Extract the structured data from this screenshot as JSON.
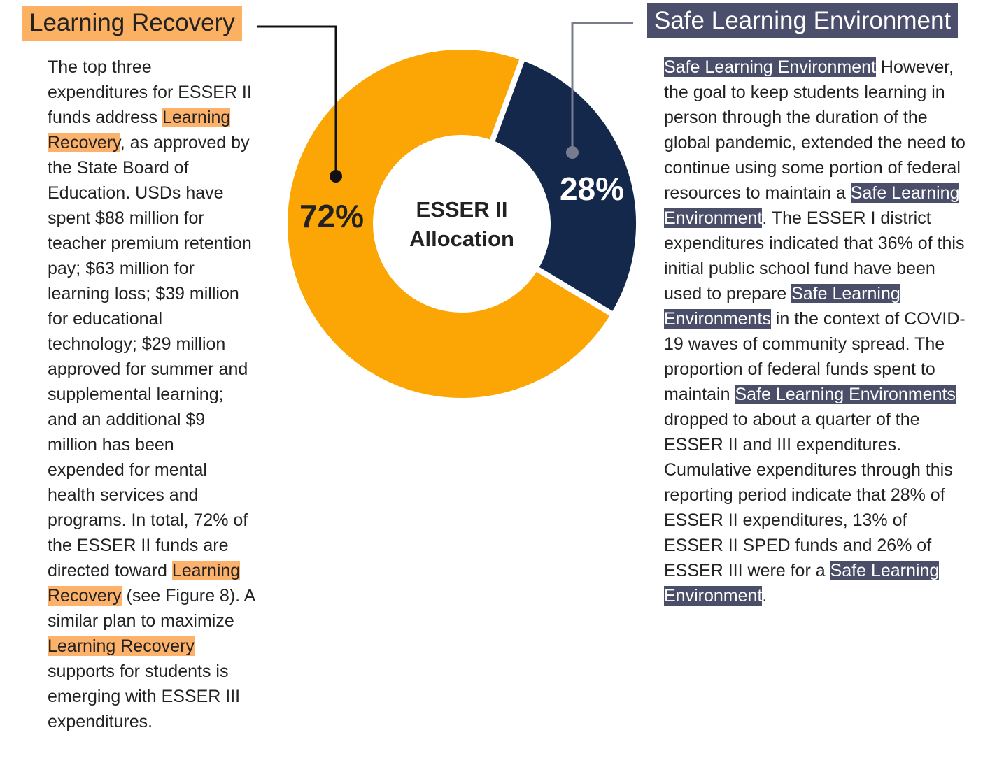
{
  "chart_data": {
    "type": "pie",
    "donut": true,
    "title": "ESSER II Allocation",
    "categories": [
      "Learning Recovery",
      "Safe Learning Environment"
    ],
    "values": [
      72,
      28
    ],
    "value_labels": [
      "72%",
      "28%"
    ],
    "colors": [
      "#fba604",
      "#14284b"
    ]
  },
  "left": {
    "paragraph": [
      {
        "text": "The top three expenditures for ESSER II funds address "
      },
      {
        "text": "Learning Recovery",
        "mark": true
      },
      {
        "text": ", as approved by the State Board of Education. USDs have spent $88 million for teacher premium retention pay; $63 million for learning loss; $39 million for educational technology; $29 million approved for summer and supplemental learning; and an additional $9 million has been expended for mental health services and programs. In total, 72% of the ESSER II funds are directed toward "
      },
      {
        "text": "Learning Recovery",
        "mark": true
      },
      {
        "text": " (see Figure 8). A similar plan to maximize "
      },
      {
        "text": "Learning Recovery",
        "mark": true
      },
      {
        "text": " supports for students is emerging with ESSER III expenditures."
      }
    ]
  },
  "right": {
    "paragraph": [
      {
        "text": "Safe Learning Environment",
        "mark": true
      },
      {
        "text": " However, the goal to keep students learning in person through the duration of the global pandemic, extended the need to continue using some portion of federal resources to maintain a "
      },
      {
        "text": "Safe Learning Environment",
        "mark": true
      },
      {
        "text": ". The ESSER I district expenditures indicated that 36% of this initial public school fund have been used to prepare "
      },
      {
        "text": "Safe Learning Environments",
        "mark": true
      },
      {
        "text": " in the context of COVID-19 waves of community spread. The proportion of federal funds spent to maintain "
      },
      {
        "text": "Safe Learning Environments",
        "mark": true
      },
      {
        "text": " dropped to about a quarter of the ESSER II and III expenditures. Cumulative expenditures through this reporting period indicate that 28% of ESSER II expenditures, 13% of ESSER II SPED funds and 26% of ESSER III were for a "
      },
      {
        "text": "Safe Learning Environment",
        "mark": true
      },
      {
        "text": "."
      }
    ]
  }
}
